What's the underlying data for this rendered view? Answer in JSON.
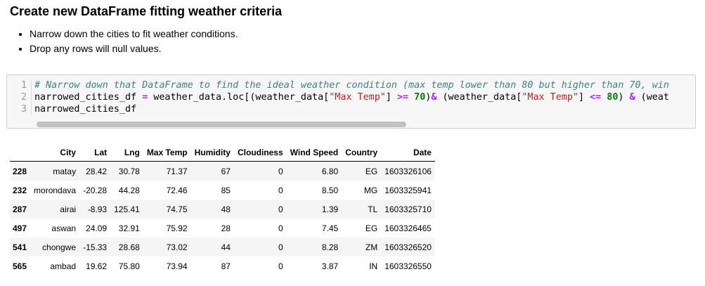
{
  "markdown": {
    "title": "Create new DataFrame fitting weather criteria",
    "bullets": [
      "Narrow down the cities to fit weather conditions.",
      "Drop any rows will null values."
    ]
  },
  "code": {
    "line_numbers": [
      "1",
      "2",
      "3"
    ],
    "line1_comment": "# Narrow down that DataFrame to find the ideal weather condition (max temp lower than 80 but higher than 70, win",
    "line2": {
      "p1": "narrowed_cities_df ",
      "op_assign": "=",
      "p2": " weather_data.loc[(weather_data[",
      "str1": "\"Max Temp\"",
      "p3": "] ",
      "op_ge": ">=",
      "p4": " ",
      "num1": "70",
      "p5": ")",
      "op_and1": "&",
      "p6": " (weather_data[",
      "str2": "\"Max Temp\"",
      "p7": "] ",
      "op_le": "<=",
      "p8": " ",
      "num2": "80",
      "p9": ") ",
      "op_and2": "&",
      "p10": " (weat"
    },
    "line3": "narrowed_cities_df"
  },
  "table": {
    "columns": [
      "",
      "City",
      "Lat",
      "Lng",
      "Max Temp",
      "Humidity",
      "Cloudiness",
      "Wind Speed",
      "Country",
      "Date"
    ],
    "rows": [
      {
        "index": "228",
        "city": "matay",
        "lat": "28.42",
        "lng": "30.78",
        "max_temp": "71.37",
        "humidity": "67",
        "cloudiness": "0",
        "wind_speed": "6.80",
        "country": "EG",
        "date": "1603326106"
      },
      {
        "index": "232",
        "city": "morondava",
        "lat": "-20.28",
        "lng": "44.28",
        "max_temp": "72.46",
        "humidity": "85",
        "cloudiness": "0",
        "wind_speed": "8.50",
        "country": "MG",
        "date": "1603325941"
      },
      {
        "index": "287",
        "city": "airai",
        "lat": "-8.93",
        "lng": "125.41",
        "max_temp": "74.75",
        "humidity": "48",
        "cloudiness": "0",
        "wind_speed": "1.39",
        "country": "TL",
        "date": "1603325710"
      },
      {
        "index": "497",
        "city": "aswan",
        "lat": "24.09",
        "lng": "32.91",
        "max_temp": "75.92",
        "humidity": "28",
        "cloudiness": "0",
        "wind_speed": "7.45",
        "country": "EG",
        "date": "1603326465"
      },
      {
        "index": "541",
        "city": "chongwe",
        "lat": "-15.33",
        "lng": "28.68",
        "max_temp": "73.02",
        "humidity": "44",
        "cloudiness": "0",
        "wind_speed": "8.28",
        "country": "ZM",
        "date": "1603326520"
      },
      {
        "index": "565",
        "city": "ambad",
        "lat": "19.62",
        "lng": "75.80",
        "max_temp": "73.94",
        "humidity": "87",
        "cloudiness": "0",
        "wind_speed": "3.87",
        "country": "IN",
        "date": "1603326550"
      }
    ]
  }
}
